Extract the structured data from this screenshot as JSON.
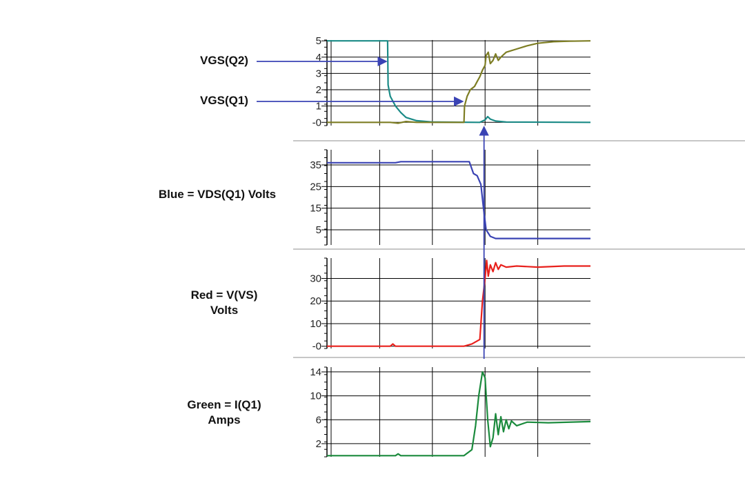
{
  "colors": {
    "vgs_q2": "#1a8a86",
    "vgs_q1": "#7d7d23",
    "vds_q1": "#3a43b4",
    "v_vs": "#e8201c",
    "i_q1": "#1a8a3c",
    "arrow": "#3a43b4",
    "grid": "#000000",
    "separator": "#b4b4b4"
  },
  "labels": {
    "vgs_q2": "VGS(Q2)",
    "vgs_q1": "VGS(Q1)",
    "vds_line1": "Blue = VDS(Q1) Volts",
    "vvs_line1": "Red = V(VS)",
    "vvs_line2": "Volts",
    "iq1_line1": "Green = I(Q1)",
    "iq1_line2": "Amps"
  },
  "chart_data": [
    {
      "type": "line",
      "panel": "gate-voltages",
      "x_divisions": 5,
      "xlim": [
        0,
        5
      ],
      "ylim": [
        -0.2,
        5.05
      ],
      "yticks": [
        "-0",
        "1",
        "2",
        "3",
        "4",
        "5"
      ],
      "ytick_values": [
        0,
        1,
        2,
        3,
        4,
        5
      ],
      "series": [
        {
          "name": "VGS(Q2)",
          "color_key": "vgs_q2",
          "points": [
            [
              0,
              5
            ],
            [
              1.15,
              5
            ],
            [
              1.16,
              2.3
            ],
            [
              1.2,
              1.6
            ],
            [
              1.3,
              1.0
            ],
            [
              1.4,
              0.6
            ],
            [
              1.5,
              0.3
            ],
            [
              1.7,
              0.1
            ],
            [
              2.0,
              0.02
            ],
            [
              2.9,
              0.0
            ],
            [
              3.0,
              0.15
            ],
            [
              3.05,
              0.35
            ],
            [
              3.1,
              0.2
            ],
            [
              3.2,
              0.08
            ],
            [
              3.4,
              0.02
            ],
            [
              5,
              0.0
            ]
          ]
        },
        {
          "name": "VGS(Q1)",
          "color_key": "vgs_q1",
          "points": [
            [
              0,
              0
            ],
            [
              1.2,
              0
            ],
            [
              1.35,
              -0.05
            ],
            [
              1.5,
              0.05
            ],
            [
              1.7,
              0.0
            ],
            [
              2.6,
              0.0
            ],
            [
              2.61,
              1.0
            ],
            [
              2.66,
              1.6
            ],
            [
              2.72,
              2.0
            ],
            [
              2.8,
              2.2
            ],
            [
              2.85,
              2.5
            ],
            [
              2.9,
              2.8
            ],
            [
              2.95,
              3.2
            ],
            [
              3.0,
              3.5
            ],
            [
              3.02,
              4.1
            ],
            [
              3.06,
              4.3
            ],
            [
              3.1,
              3.6
            ],
            [
              3.15,
              3.8
            ],
            [
              3.2,
              4.2
            ],
            [
              3.25,
              3.8
            ],
            [
              3.3,
              4.0
            ],
            [
              3.4,
              4.3
            ],
            [
              3.6,
              4.5
            ],
            [
              3.8,
              4.7
            ],
            [
              4.0,
              4.85
            ],
            [
              4.3,
              4.95
            ],
            [
              4.6,
              4.98
            ],
            [
              5,
              5.0
            ]
          ]
        }
      ]
    },
    {
      "type": "line",
      "panel": "vds",
      "x_divisions": 5,
      "xlim": [
        0,
        5
      ],
      "ylim": [
        -2,
        42
      ],
      "yticks": [
        "5",
        "15",
        "25",
        "35"
      ],
      "ytick_values": [
        5,
        15,
        25,
        35
      ],
      "series": [
        {
          "name": "Blue = VDS(Q1) Volts",
          "color_key": "vds_q1",
          "points": [
            [
              0,
              36
            ],
            [
              1.3,
              36
            ],
            [
              1.4,
              36.5
            ],
            [
              2.0,
              36.5
            ],
            [
              2.7,
              36.5
            ],
            [
              2.78,
              31
            ],
            [
              2.85,
              30
            ],
            [
              2.92,
              26
            ],
            [
              2.97,
              15
            ],
            [
              3.02,
              5
            ],
            [
              3.1,
              2
            ],
            [
              3.2,
              1
            ],
            [
              5,
              1
            ]
          ]
        }
      ]
    },
    {
      "type": "line",
      "panel": "v-vs",
      "x_divisions": 5,
      "xlim": [
        0,
        5
      ],
      "ylim": [
        -1,
        39
      ],
      "yticks": [
        "-0",
        "10",
        "20",
        "30"
      ],
      "ytick_values": [
        0,
        10,
        20,
        30
      ],
      "series": [
        {
          "name": "Red = V(VS) Volts",
          "color_key": "v_vs",
          "points": [
            [
              0,
              0
            ],
            [
              1.2,
              0
            ],
            [
              1.25,
              1
            ],
            [
              1.3,
              0
            ],
            [
              2.6,
              0
            ],
            [
              2.75,
              1
            ],
            [
              2.9,
              3
            ],
            [
              2.95,
              20
            ],
            [
              3.0,
              30
            ],
            [
              3.03,
              38
            ],
            [
              3.06,
              31
            ],
            [
              3.1,
              36
            ],
            [
              3.15,
              33
            ],
            [
              3.2,
              37
            ],
            [
              3.25,
              34
            ],
            [
              3.3,
              36
            ],
            [
              3.4,
              35
            ],
            [
              3.6,
              35.5
            ],
            [
              4.0,
              35
            ],
            [
              4.5,
              35.5
            ],
            [
              5,
              35.5
            ]
          ]
        }
      ]
    },
    {
      "type": "line",
      "panel": "i-q1",
      "x_divisions": 5,
      "xlim": [
        0,
        5
      ],
      "ylim": [
        -0.2,
        14.8
      ],
      "yticks": [
        "2",
        "6",
        "10",
        "14"
      ],
      "ytick_values": [
        2,
        6,
        10,
        14
      ],
      "series": [
        {
          "name": "Green = I(Q1) Amps",
          "color_key": "i_q1",
          "points": [
            [
              0,
              0
            ],
            [
              1.3,
              0
            ],
            [
              1.35,
              0.3
            ],
            [
              1.4,
              0
            ],
            [
              2.6,
              0
            ],
            [
              2.75,
              1
            ],
            [
              2.82,
              5
            ],
            [
              2.88,
              10
            ],
            [
              2.95,
              14
            ],
            [
              3.0,
              13
            ],
            [
              3.05,
              6
            ],
            [
              3.1,
              1.5
            ],
            [
              3.15,
              3
            ],
            [
              3.2,
              7
            ],
            [
              3.25,
              3.5
            ],
            [
              3.3,
              6.5
            ],
            [
              3.35,
              4
            ],
            [
              3.4,
              6
            ],
            [
              3.45,
              4.5
            ],
            [
              3.5,
              5.8
            ],
            [
              3.6,
              5
            ],
            [
              3.8,
              5.6
            ],
            [
              4.2,
              5.5
            ],
            [
              5,
              5.7
            ]
          ]
        }
      ]
    }
  ]
}
